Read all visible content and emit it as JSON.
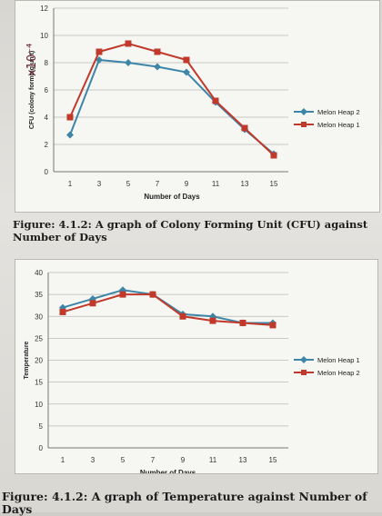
{
  "chart_data": [
    {
      "type": "line",
      "title": "",
      "xlabel": "Number of Days",
      "ylabel": "CFU (colony forming unit)",
      "x": [
        1,
        3,
        5,
        7,
        9,
        11,
        13,
        15
      ],
      "ylim": [
        0,
        12
      ],
      "yticks": [
        0,
        2,
        4,
        6,
        8,
        10,
        12
      ],
      "grid": true,
      "legend": "right",
      "series": [
        {
          "name": "Melon Heap 2",
          "color": "#3d86a8",
          "marker": "diamond",
          "values": [
            2.7,
            8.2,
            8.0,
            7.7,
            7.3,
            5.1,
            3.1,
            1.3
          ]
        },
        {
          "name": "Melon Heap 1",
          "color": "#c0392b",
          "marker": "square",
          "values": [
            4.0,
            8.8,
            9.4,
            8.8,
            8.2,
            5.2,
            3.2,
            1.2
          ]
        }
      ],
      "annotation": "x10⁻⁴"
    },
    {
      "type": "line",
      "title": "",
      "xlabel": "Number of Days",
      "ylabel": "Temperature",
      "x": [
        1,
        3,
        5,
        7,
        9,
        11,
        13,
        15
      ],
      "ylim": [
        0,
        40
      ],
      "yticks": [
        0,
        5,
        10,
        15,
        20,
        25,
        30,
        35,
        40
      ],
      "grid": true,
      "legend": "right",
      "series": [
        {
          "name": "Melon Heap 1",
          "color": "#3d86a8",
          "marker": "diamond",
          "values": [
            32,
            34,
            36,
            35,
            30.5,
            30,
            28.5,
            28.5
          ]
        },
        {
          "name": "Melon Heap 2",
          "color": "#c0392b",
          "marker": "square",
          "values": [
            31,
            33,
            35,
            35,
            30,
            29,
            28.5,
            28
          ]
        }
      ]
    }
  ],
  "captions": [
    "Figure: 4.1.2:  A graph of Colony Forming Unit (CFU) against Number of Days",
    "Figure: 4.1.2:  A graph of Temperature against Number of Days"
  ]
}
